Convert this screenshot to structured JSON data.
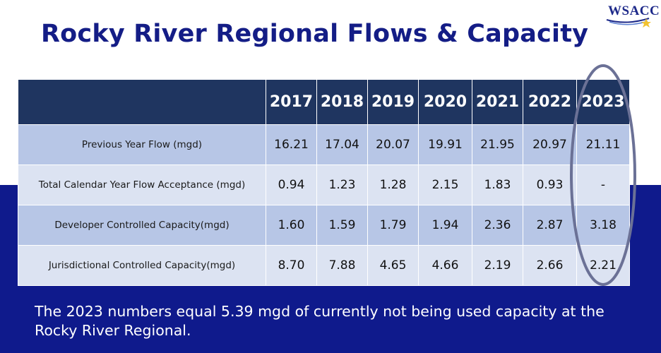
{
  "slide": {
    "title": "Rocky River Regional Flows & Capacity",
    "logo_text": "WSACC",
    "note": "The 2023 numbers equal 5.39 mgd of currently not being used capacity at the Rocky River Regional."
  },
  "table": {
    "years": [
      "2017",
      "2018",
      "2019",
      "2020",
      "2021",
      "2022",
      "2023"
    ],
    "rows": [
      {
        "label": "Previous Year Flow (mgd)",
        "values": [
          "16.21",
          "17.04",
          "20.07",
          "19.91",
          "21.95",
          "20.97",
          "21.11"
        ]
      },
      {
        "label": "Total Calendar Year Flow Acceptance (mgd)",
        "values": [
          "0.94",
          "1.23",
          "1.28",
          "2.15",
          "1.83",
          "0.93",
          "-"
        ]
      },
      {
        "label": "Developer Controlled Capacity(mgd)",
        "values": [
          "1.60",
          "1.59",
          "1.79",
          "1.94",
          "2.36",
          "2.87",
          "3.18"
        ]
      },
      {
        "label": "Jurisdictional Controlled Capacity(mgd)",
        "values": [
          "8.70",
          "7.88",
          "4.65",
          "4.66",
          "2.19",
          "2.66",
          "2.21"
        ]
      }
    ]
  },
  "colors": {
    "title": "#141d86",
    "header_bg": "#1f3560",
    "band_bg": "#0f1a8c",
    "row_dark": "#b7c6e6",
    "row_light": "#dce3f2",
    "highlight_ellipse": "#6b7196"
  }
}
